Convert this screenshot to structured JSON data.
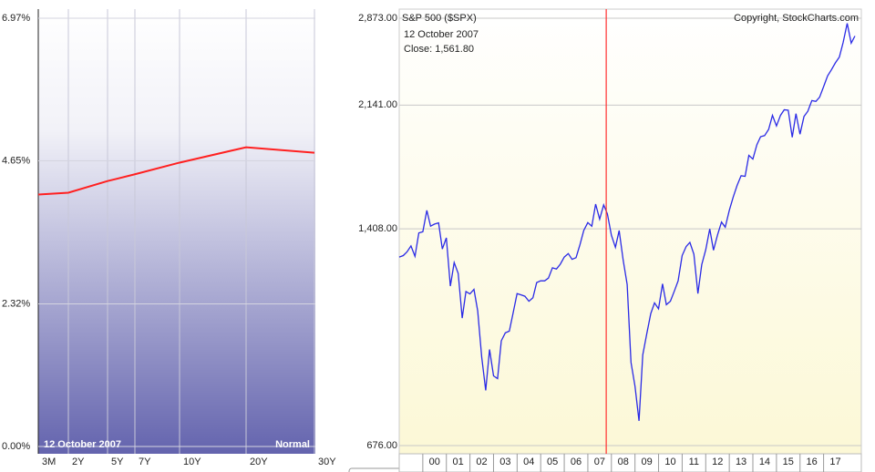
{
  "chart_data": [
    {
      "type": "line",
      "categories": [
        "3M",
        "2Y",
        "5Y",
        "7Y",
        "10Y",
        "20Y",
        "30Y"
      ],
      "series": [
        {
          "color": "#ff2020",
          "values": [
            4.1,
            4.13,
            4.32,
            4.43,
            4.62,
            4.87,
            4.78
          ]
        }
      ],
      "ylim": [
        0,
        6.97
      ],
      "yticks": [
        {
          "value": 0,
          "label": "0.00%"
        },
        {
          "value": 2.32,
          "label": "2.32%"
        },
        {
          "value": 4.65,
          "label": "4.65%"
        },
        {
          "value": 6.97,
          "label": "6.97%"
        }
      ],
      "grid": true,
      "date_label": "12 October 2007",
      "curve_label": "Normal"
    },
    {
      "type": "line",
      "title": "S&P 500 ($SPX)",
      "copyright": "Copyright, StockCharts.com",
      "date_label": "12 October 2007",
      "close_label": "Close: 1,561.80",
      "log_scale": true,
      "marker": 2007.78,
      "marker_color": "#ff3030",
      "x": [
        1999,
        1999.17,
        1999.33,
        1999.5,
        1999.67,
        1999.83,
        2000,
        2000.17,
        2000.33,
        2000.5,
        2000.67,
        2000.83,
        2001,
        2001.17,
        2001.33,
        2001.5,
        2001.67,
        2001.83,
        2002,
        2002.17,
        2002.33,
        2002.5,
        2002.67,
        2002.83,
        2003,
        2003.17,
        2003.33,
        2003.5,
        2003.67,
        2003.83,
        2004,
        2004.17,
        2004.33,
        2004.5,
        2004.67,
        2004.83,
        2005,
        2005.17,
        2005.33,
        2005.5,
        2005.67,
        2005.83,
        2006,
        2006.17,
        2006.33,
        2006.5,
        2006.67,
        2006.83,
        2007,
        2007.17,
        2007.33,
        2007.5,
        2007.67,
        2007.83,
        2008,
        2008.17,
        2008.33,
        2008.5,
        2008.67,
        2008.83,
        2009,
        2009.17,
        2009.33,
        2009.5,
        2009.67,
        2009.83,
        2010,
        2010.17,
        2010.33,
        2010.5,
        2010.67,
        2010.83,
        2011,
        2011.17,
        2011.33,
        2011.5,
        2011.67,
        2011.83,
        2012,
        2012.17,
        2012.33,
        2012.5,
        2012.67,
        2012.83,
        2013,
        2013.17,
        2013.33,
        2013.5,
        2013.67,
        2013.83,
        2014,
        2014.17,
        2014.33,
        2014.5,
        2014.67,
        2014.83,
        2015,
        2015.17,
        2015.33,
        2015.5,
        2015.67,
        2015.83,
        2016,
        2016.17,
        2016.33,
        2016.5,
        2016.67,
        2016.83,
        2017,
        2017.17,
        2017.33,
        2017.5,
        2017.67,
        2017.83,
        2018,
        2018.17,
        2018.33
      ],
      "series": [
        {
          "color": "#2a2ae6",
          "values": [
            1280,
            1286,
            1302,
            1329,
            1283,
            1389,
            1394,
            1499,
            1421,
            1431,
            1437,
            1315,
            1366,
            1160,
            1256,
            1211,
            1041,
            1139,
            1130,
            1147,
            1067,
            912,
            815,
            936,
            856,
            848,
            964,
            990,
            996,
            1058,
            1131,
            1126,
            1121,
            1102,
            1115,
            1174,
            1181,
            1181,
            1192,
            1234,
            1229,
            1249,
            1280,
            1295,
            1270,
            1277,
            1336,
            1401,
            1438,
            1421,
            1531,
            1455,
            1527,
            1481,
            1378,
            1323,
            1400,
            1267,
            1166,
            896,
            826,
            735,
            919,
            987,
            1057,
            1096,
            1074,
            1169,
            1089,
            1102,
            1141,
            1181,
            1286,
            1326,
            1345,
            1292,
            1131,
            1247,
            1312,
            1408,
            1310,
            1379,
            1441,
            1416,
            1498,
            1569,
            1631,
            1686,
            1682,
            1806,
            1783,
            1872,
            1924,
            1931,
            1972,
            2068,
            1995,
            2068,
            2107,
            2104,
            1920,
            2080,
            1940,
            2060,
            2097,
            2174,
            2168,
            2199,
            2279,
            2363,
            2412,
            2470,
            2519,
            2648,
            2824,
            2641,
            2705
          ]
        }
      ],
      "xlim": [
        1999,
        2018.6
      ],
      "xticks": [
        {
          "value": 2000,
          "label": "00"
        },
        {
          "value": 2001,
          "label": "01"
        },
        {
          "value": 2002,
          "label": "02"
        },
        {
          "value": 2003,
          "label": "03"
        },
        {
          "value": 2004,
          "label": "04"
        },
        {
          "value": 2005,
          "label": "05"
        },
        {
          "value": 2006,
          "label": "06"
        },
        {
          "value": 2007,
          "label": "07"
        },
        {
          "value": 2008,
          "label": "08"
        },
        {
          "value": 2009,
          "label": "09"
        },
        {
          "value": 2010,
          "label": "10"
        },
        {
          "value": 2011,
          "label": "11"
        },
        {
          "value": 2012,
          "label": "12"
        },
        {
          "value": 2013,
          "label": "13"
        },
        {
          "value": 2014,
          "label": "14"
        },
        {
          "value": 2015,
          "label": "15"
        },
        {
          "value": 2016,
          "label": "16"
        },
        {
          "value": 2017,
          "label": "17"
        }
      ],
      "ylim": [
        676,
        2873
      ],
      "yticks": [
        {
          "value": 676,
          "label": "676.00"
        },
        {
          "value": 1408,
          "label": "1,408.00"
        },
        {
          "value": 2141,
          "label": "2,141.00"
        },
        {
          "value": 2873,
          "label": "2,873.00"
        }
      ],
      "grid": true
    }
  ]
}
